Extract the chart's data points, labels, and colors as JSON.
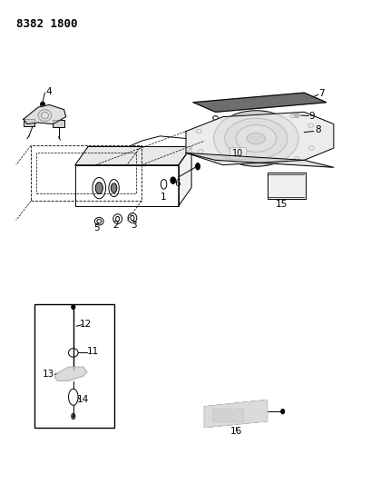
{
  "title": "8382 1800",
  "bg_color": "#ffffff",
  "line_color": "#000000",
  "title_fontsize": 9,
  "fig_width": 4.1,
  "fig_height": 5.33,
  "dpi": 100,
  "label_fontsize": 7.5
}
